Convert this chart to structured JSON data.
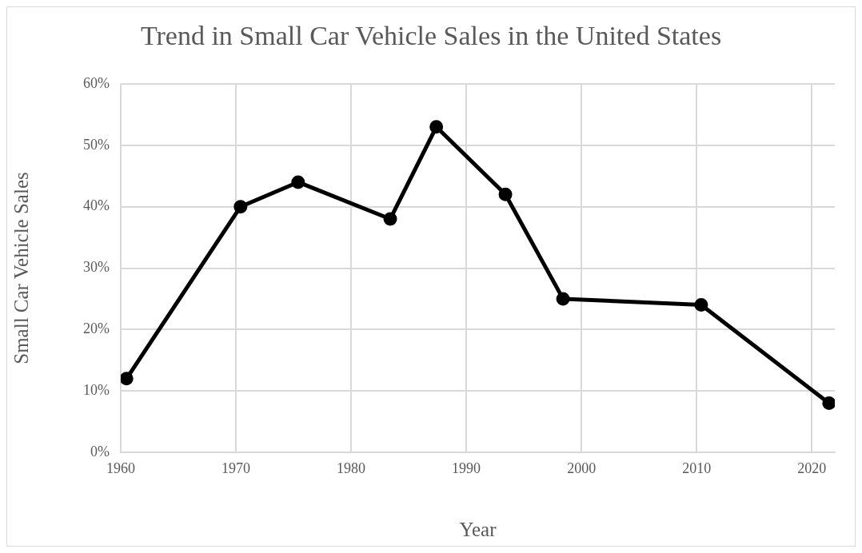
{
  "chart_data": {
    "type": "line",
    "title": "Trend in Small Car Vehicle Sales in the United States",
    "xlabel": "Year",
    "ylabel": "Small Car Vehicle Sales",
    "x": [
      1960.5,
      1970.4,
      1975.4,
      1983.4,
      1987.4,
      1993.4,
      1998.4,
      2010.4,
      2021.5
    ],
    "series": [
      {
        "color": "#000000",
        "values": [
          12,
          40,
          44,
          38,
          53,
          42,
          25,
          24,
          8
        ]
      }
    ],
    "xlim": [
      1960,
      2022
    ],
    "xticks": [
      1960,
      1970,
      1980,
      1990,
      2000,
      2010,
      2020
    ],
    "ylim": [
      0,
      60
    ],
    "yticks": [
      {
        "value": 0,
        "label": "0%"
      },
      {
        "value": 10,
        "label": "10%"
      },
      {
        "value": 20,
        "label": "20%"
      },
      {
        "value": 30,
        "label": "30%"
      },
      {
        "value": 40,
        "label": "40%"
      },
      {
        "value": 50,
        "label": "50%"
      },
      {
        "value": 60,
        "label": "60%"
      }
    ],
    "grid": true,
    "marker": "circle",
    "line_style": "solid",
    "legend": false
  }
}
